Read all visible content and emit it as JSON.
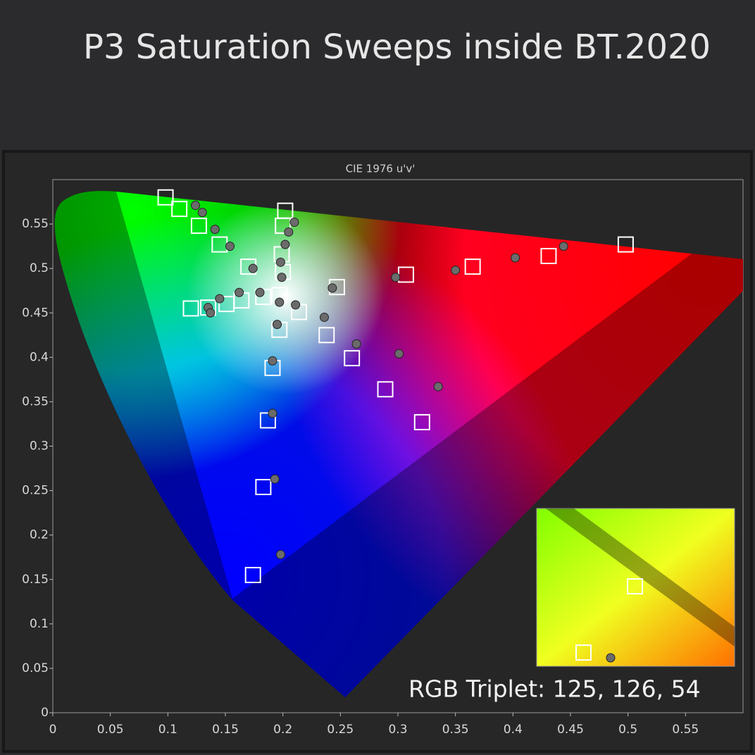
{
  "chart_data": {
    "type": "scatter",
    "title": "P3 Saturation Sweeps inside BT.2020",
    "subtitle": "CIE 1976 u'v'",
    "annotation": "RGB Triplet: 125, 126, 54",
    "xlim": [
      0,
      0.6
    ],
    "ylim": [
      0,
      0.6
    ],
    "xticks": [
      0,
      0.05,
      0.1,
      0.15,
      0.2,
      0.25,
      0.3,
      0.35,
      0.4,
      0.45,
      0.5,
      0.55
    ],
    "yticks": [
      0,
      0.05,
      0.1,
      0.15,
      0.2,
      0.25,
      0.3,
      0.35,
      0.4,
      0.45,
      0.5,
      0.55
    ],
    "series": [
      {
        "marker": "square",
        "color": "#ffffff",
        "x": [
          0.098,
          0.11,
          0.127,
          0.145,
          0.17,
          0.202,
          0.2,
          0.199,
          0.2,
          0.197,
          0.12,
          0.135,
          0.151,
          0.164,
          0.183,
          0.214,
          0.197,
          0.191,
          0.187,
          0.183,
          0.174,
          0.238,
          0.247,
          0.26,
          0.289,
          0.321,
          0.307,
          0.365,
          0.431,
          0.498
        ],
        "values": [
          0.58,
          0.567,
          0.548,
          0.527,
          0.502,
          0.565,
          0.548,
          0.516,
          0.496,
          0.47,
          0.455,
          0.456,
          0.46,
          0.464,
          0.468,
          0.451,
          0.431,
          0.388,
          0.329,
          0.254,
          0.155,
          0.425,
          0.479,
          0.399,
          0.364,
          0.327,
          0.493,
          0.502,
          0.514,
          0.527
        ]
      },
      {
        "marker": "circle",
        "color": "#6b6b6b",
        "x": [
          0.124,
          0.13,
          0.141,
          0.154,
          0.174,
          0.21,
          0.205,
          0.202,
          0.198,
          0.199,
          0.197,
          0.135,
          0.137,
          0.145,
          0.162,
          0.18,
          0.211,
          0.195,
          0.191,
          0.191,
          0.193,
          0.198,
          0.243,
          0.236,
          0.264,
          0.298,
          0.301,
          0.335,
          0.35,
          0.402,
          0.444
        ],
        "values": [
          0.571,
          0.563,
          0.544,
          0.525,
          0.5,
          0.552,
          0.541,
          0.527,
          0.507,
          0.49,
          0.462,
          0.456,
          0.45,
          0.466,
          0.473,
          0.473,
          0.459,
          0.437,
          0.396,
          0.337,
          0.263,
          0.178,
          0.478,
          0.445,
          0.415,
          0.49,
          0.404,
          0.367,
          0.498,
          0.512,
          0.525
        ]
      }
    ]
  }
}
